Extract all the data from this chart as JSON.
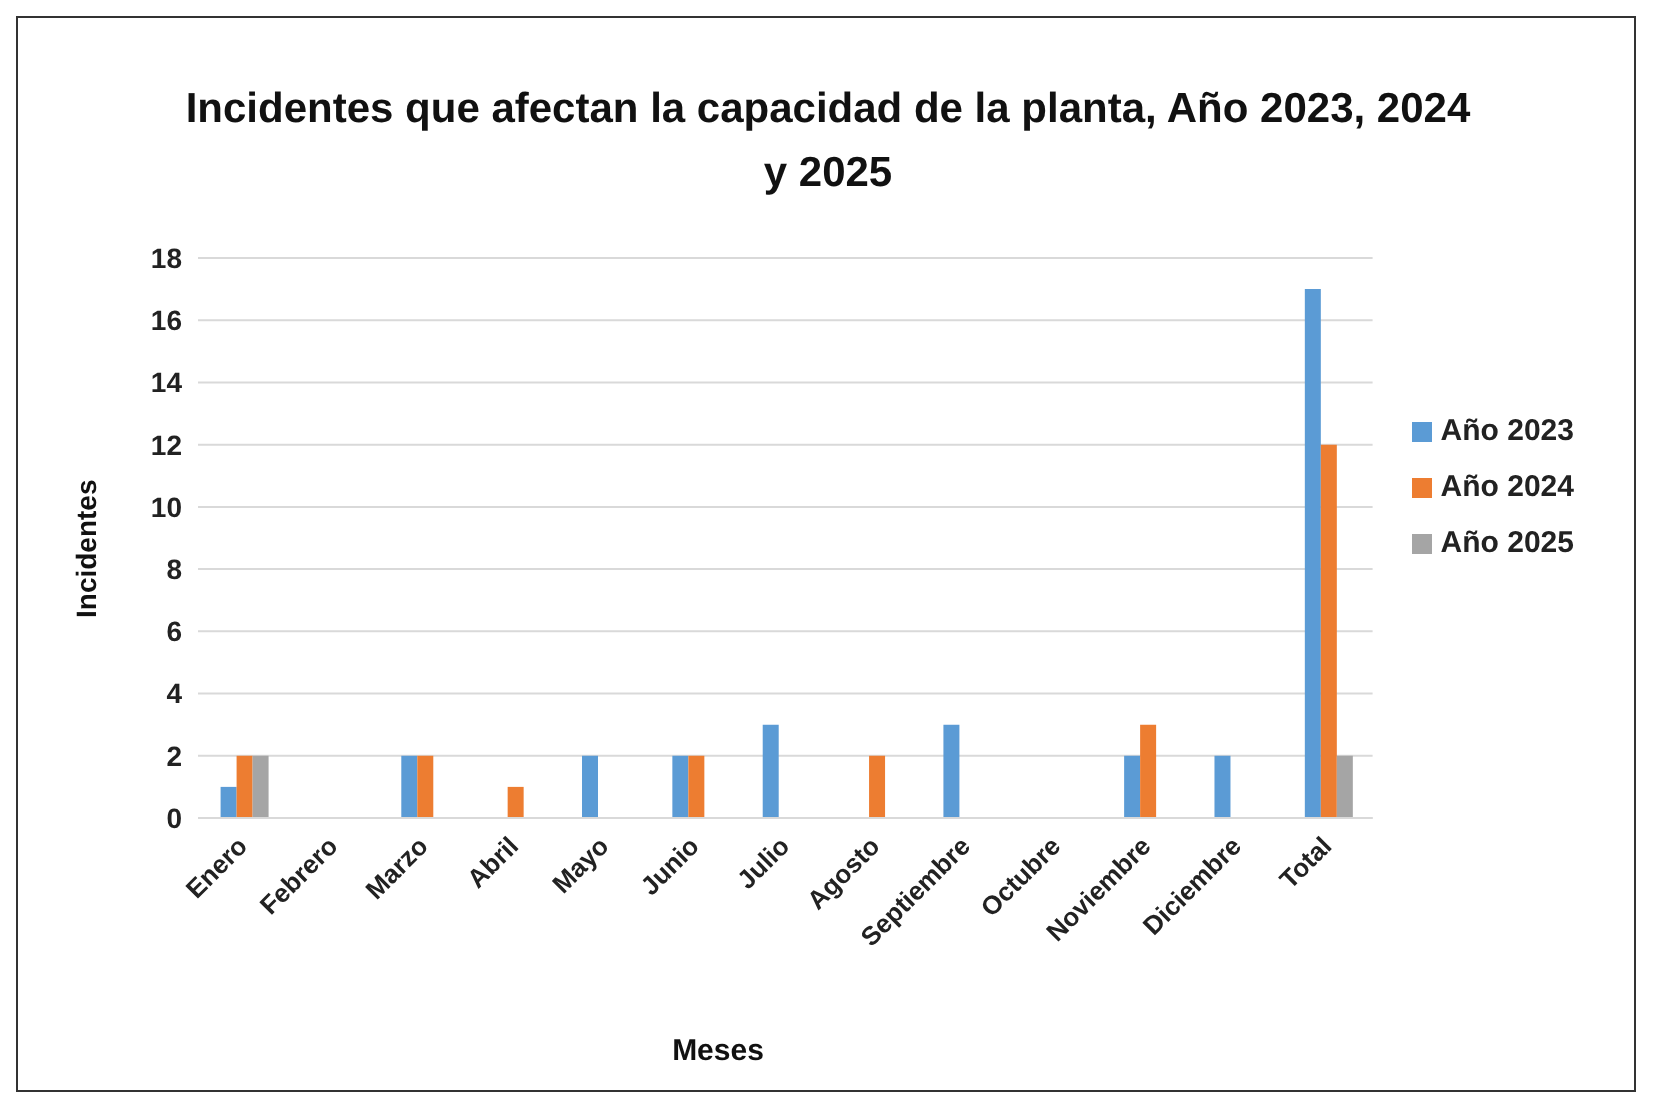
{
  "chart_data": {
    "type": "bar",
    "title": "Incidentes que afectan la capacidad  de la planta, Año 2023, 2024 y 2025",
    "xlabel": "Meses",
    "ylabel": "Incidentes",
    "categories": [
      "Enero",
      "Febrero",
      "Marzo",
      "Abril",
      "Mayo",
      "Junio",
      "Julio",
      "Agosto",
      "Septiembre",
      "Octubre",
      "Noviembre",
      "Diciembre",
      "Total"
    ],
    "series": [
      {
        "name": "Año  2023",
        "color": "#5b9bd5",
        "values": [
          1,
          0,
          2,
          0,
          2,
          2,
          3,
          0,
          3,
          0,
          2,
          2,
          17
        ]
      },
      {
        "name": "Año  2024",
        "color": "#ed7d31",
        "values": [
          2,
          0,
          2,
          1,
          0,
          2,
          0,
          2,
          0,
          0,
          3,
          0,
          12
        ]
      },
      {
        "name": "Año  2025",
        "color": "#a5a5a5",
        "values": [
          2,
          0,
          0,
          0,
          0,
          0,
          0,
          0,
          0,
          0,
          0,
          0,
          2
        ]
      }
    ],
    "ylim": [
      0,
      18
    ],
    "yticks": [
      0,
      2,
      4,
      6,
      8,
      10,
      12,
      14,
      16,
      18
    ],
    "grid": "y",
    "legend": "right"
  }
}
